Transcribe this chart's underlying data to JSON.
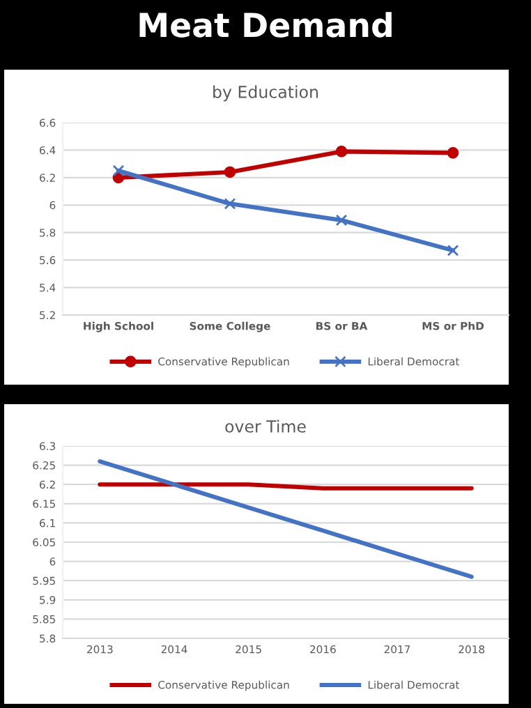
{
  "chart_data": [
    {
      "type": "line",
      "title": "Meat Demand",
      "subtitle": "by Education",
      "categories": [
        "High School",
        "Some College",
        "BS or BA",
        "MS or PhD"
      ],
      "series": [
        {
          "name": "Conservative Republican",
          "color": "#c00000",
          "marker": "circle",
          "values": [
            6.2,
            6.24,
            6.39,
            6.38
          ]
        },
        {
          "name": "Liberal Democrat",
          "color": "#4472c4",
          "marker": "cross",
          "values": [
            6.25,
            6.01,
            5.89,
            5.67
          ]
        }
      ],
      "ylim": [
        5.2,
        6.6
      ],
      "yticks": [
        5.2,
        5.4,
        5.6,
        5.8,
        6,
        6.2,
        6.4,
        6.6
      ],
      "grid": "y",
      "legend": "bottom"
    },
    {
      "type": "line",
      "subtitle": "over Time",
      "categories": [
        "2013",
        "2014",
        "2015",
        "2016",
        "2017",
        "2018"
      ],
      "series": [
        {
          "name": "Conservative Republican",
          "color": "#c00000",
          "values": [
            6.2,
            6.2,
            6.2,
            6.19,
            6.19,
            6.19
          ]
        },
        {
          "name": "Liberal Democrat",
          "color": "#4472c4",
          "values": [
            6.26,
            6.2,
            6.14,
            6.08,
            6.02,
            5.96
          ]
        }
      ],
      "ylim": [
        5.8,
        6.3
      ],
      "yticks": [
        5.8,
        5.85,
        5.9,
        5.95,
        6,
        6.05,
        6.1,
        6.15,
        6.2,
        6.25,
        6.3
      ],
      "grid": "y",
      "legend": "bottom"
    }
  ]
}
